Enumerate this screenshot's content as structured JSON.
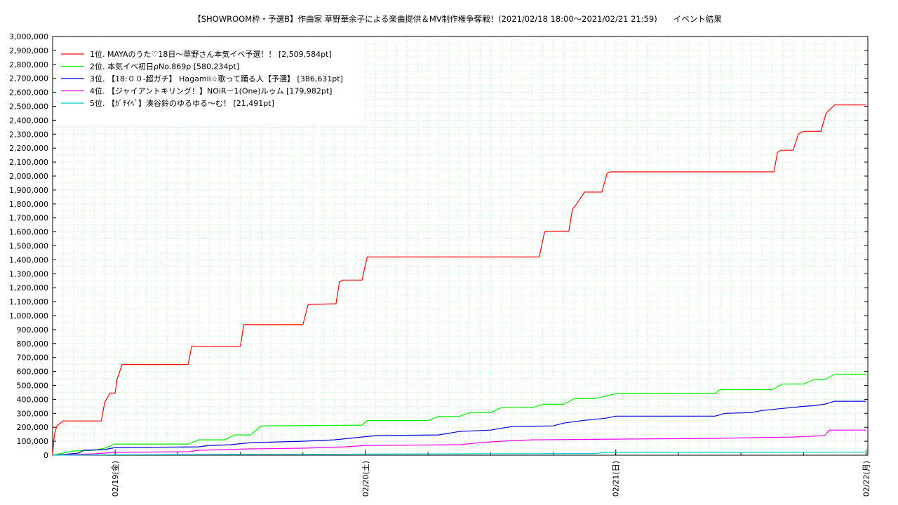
{
  "chart_data": {
    "type": "line",
    "title": "【SHOWROOM枠・予選B】作曲家 草野華余子による楽曲提供＆MV制作権争奪戦！(2021/02/18 18:00〜2021/02/21 21:59)　　イベント結果",
    "xlabel": "",
    "ylabel": "",
    "x_range": [
      "2021-02-18 18:00",
      "2021-02-22 00:10"
    ],
    "ylim": [
      0,
      3000000
    ],
    "y_ticks": [
      0,
      100000,
      200000,
      300000,
      400000,
      500000,
      600000,
      700000,
      800000,
      900000,
      1000000,
      1100000,
      1200000,
      1300000,
      1400000,
      1500000,
      1600000,
      1700000,
      1800000,
      1900000,
      2000000,
      2100000,
      2200000,
      2300000,
      2400000,
      2500000,
      2600000,
      2700000,
      2800000,
      2900000,
      3000000
    ],
    "y_tick_labels": [
      "0",
      "100,000",
      "200,000",
      "300,000",
      "400,000",
      "500,000",
      "600,000",
      "700,000",
      "800,000",
      "900,000",
      "1,000,000",
      "1,100,000",
      "1,200,000",
      "1,300,000",
      "1,400,000",
      "1,500,000",
      "1,600,000",
      "1,700,000",
      "1,800,000",
      "1,900,000",
      "2,000,000",
      "2,100,000",
      "2,200,000",
      "2,300,000",
      "2,400,000",
      "2,500,000",
      "2,600,000",
      "2,700,000",
      "2,800,000",
      "2,900,000",
      "3,000,000"
    ],
    "x_ticks": [
      {
        "date": "2021-02-19 00:00",
        "label": "02/19(金)"
      },
      {
        "date": "2021-02-20 00:00",
        "label": "02/20(土)"
      },
      {
        "date": "2021-02-21 00:00",
        "label": "02/21(日)"
      },
      {
        "date": "2021-02-22 00:00",
        "label": "02/22(月)"
      }
    ],
    "grid": true,
    "legend_position": "top-left",
    "series": [
      {
        "name": "1位. MAYAのうた︎♡18日〜草野さん本気イベ予選！！ [2,509,584pt]",
        "color": "#ff0000",
        "points": [
          [
            "2021-02-18 18:00",
            0
          ],
          [
            "2021-02-18 18:10",
            150000
          ],
          [
            "2021-02-18 18:25",
            210000
          ],
          [
            "2021-02-18 19:00",
            245000
          ],
          [
            "2021-02-18 22:40",
            245000
          ],
          [
            "2021-02-18 23:00",
            380000
          ],
          [
            "2021-02-18 23:30",
            445000
          ],
          [
            "2021-02-19 00:00",
            445000
          ],
          [
            "2021-02-19 00:10",
            540000
          ],
          [
            "2021-02-19 00:40",
            650000
          ],
          [
            "2021-02-19 07:00",
            650000
          ],
          [
            "2021-02-19 07:20",
            780000
          ],
          [
            "2021-02-19 12:00",
            780000
          ],
          [
            "2021-02-19 12:20",
            935000
          ],
          [
            "2021-02-19 18:00",
            935000
          ],
          [
            "2021-02-19 18:30",
            1080000
          ],
          [
            "2021-02-19 21:10",
            1085000
          ],
          [
            "2021-02-19 21:30",
            1240000
          ],
          [
            "2021-02-19 21:50",
            1255000
          ],
          [
            "2021-02-19 23:40",
            1255000
          ],
          [
            "2021-02-20 00:10",
            1420000
          ],
          [
            "2021-02-20 16:40",
            1420000
          ],
          [
            "2021-02-20 17:10",
            1600000
          ],
          [
            "2021-02-20 17:30",
            1605000
          ],
          [
            "2021-02-20 19:30",
            1605000
          ],
          [
            "2021-02-20 19:50",
            1760000
          ],
          [
            "2021-02-20 20:20",
            1810000
          ],
          [
            "2021-02-20 21:00",
            1885000
          ],
          [
            "2021-02-20 22:40",
            1885000
          ],
          [
            "2021-02-20 23:10",
            2020000
          ],
          [
            "2021-02-20 23:30",
            2030000
          ],
          [
            "2021-02-21 15:10",
            2030000
          ],
          [
            "2021-02-21 15:30",
            2170000
          ],
          [
            "2021-02-21 15:50",
            2185000
          ],
          [
            "2021-02-21 17:00",
            2185000
          ],
          [
            "2021-02-21 17:30",
            2300000
          ],
          [
            "2021-02-21 18:00",
            2320000
          ],
          [
            "2021-02-21 19:40",
            2320000
          ],
          [
            "2021-02-21 20:10",
            2450000
          ],
          [
            "2021-02-21 21:00",
            2509584
          ],
          [
            "2021-02-22 00:00",
            2509584
          ]
        ]
      },
      {
        "name": "2位. 本気イベ初日ρNo.869ρ [580,234pt]",
        "color": "#00ee00",
        "points": [
          [
            "2021-02-18 18:00",
            0
          ],
          [
            "2021-02-18 19:00",
            15000
          ],
          [
            "2021-02-18 20:00",
            30000
          ],
          [
            "2021-02-18 22:00",
            35000
          ],
          [
            "2021-02-18 23:00",
            50000
          ],
          [
            "2021-02-19 00:00",
            80000
          ],
          [
            "2021-02-19 07:00",
            80000
          ],
          [
            "2021-02-19 08:00",
            110000
          ],
          [
            "2021-02-19 10:30",
            110000
          ],
          [
            "2021-02-19 11:30",
            145000
          ],
          [
            "2021-02-19 13:00",
            145000
          ],
          [
            "2021-02-19 14:00",
            210000
          ],
          [
            "2021-02-19 23:40",
            215000
          ],
          [
            "2021-02-20 00:10",
            248000
          ],
          [
            "2021-02-20 06:00",
            248000
          ],
          [
            "2021-02-20 07:00",
            278000
          ],
          [
            "2021-02-20 09:00",
            278000
          ],
          [
            "2021-02-20 10:00",
            305000
          ],
          [
            "2021-02-20 12:00",
            305000
          ],
          [
            "2021-02-20 13:00",
            340000
          ],
          [
            "2021-02-20 16:00",
            340000
          ],
          [
            "2021-02-20 17:00",
            365000
          ],
          [
            "2021-02-20 19:00",
            365000
          ],
          [
            "2021-02-20 20:00",
            405000
          ],
          [
            "2021-02-20 22:00",
            405000
          ],
          [
            "2021-02-21 00:00",
            440000
          ],
          [
            "2021-02-21 09:30",
            440000
          ],
          [
            "2021-02-21 10:00",
            470000
          ],
          [
            "2021-02-21 15:00",
            470000
          ],
          [
            "2021-02-21 16:00",
            510000
          ],
          [
            "2021-02-21 18:00",
            510000
          ],
          [
            "2021-02-21 19:00",
            540000
          ],
          [
            "2021-02-21 20:00",
            540000
          ],
          [
            "2021-02-21 21:00",
            580234
          ],
          [
            "2021-02-22 00:00",
            580234
          ]
        ]
      },
      {
        "name": "3位. 【18:００-超ガチ】 Hagamii☆歌って踊る人【予選】 [386,631pt]",
        "color": "#0000dd",
        "points": [
          [
            "2021-02-18 18:00",
            0
          ],
          [
            "2021-02-18 19:00",
            5000
          ],
          [
            "2021-02-18 20:30",
            15000
          ],
          [
            "2021-02-18 21:00",
            35000
          ],
          [
            "2021-02-18 23:00",
            40000
          ],
          [
            "2021-02-19 00:00",
            55000
          ],
          [
            "2021-02-19 08:00",
            60000
          ],
          [
            "2021-02-19 09:00",
            70000
          ],
          [
            "2021-02-19 11:00",
            75000
          ],
          [
            "2021-02-19 13:00",
            90000
          ],
          [
            "2021-02-19 18:00",
            100000
          ],
          [
            "2021-02-19 21:00",
            110000
          ],
          [
            "2021-02-19 23:00",
            125000
          ],
          [
            "2021-02-20 01:00",
            140000
          ],
          [
            "2021-02-20 07:00",
            145000
          ],
          [
            "2021-02-20 09:00",
            170000
          ],
          [
            "2021-02-20 12:00",
            180000
          ],
          [
            "2021-02-20 14:00",
            205000
          ],
          [
            "2021-02-20 18:00",
            210000
          ],
          [
            "2021-02-20 19:00",
            230000
          ],
          [
            "2021-02-20 21:00",
            250000
          ],
          [
            "2021-02-20 23:00",
            265000
          ],
          [
            "2021-02-21 00:00",
            280000
          ],
          [
            "2021-02-21 09:30",
            280000
          ],
          [
            "2021-02-21 10:30",
            300000
          ],
          [
            "2021-02-21 13:00",
            305000
          ],
          [
            "2021-02-21 14:00",
            320000
          ],
          [
            "2021-02-21 16:00",
            335000
          ],
          [
            "2021-02-21 18:00",
            350000
          ],
          [
            "2021-02-21 19:00",
            355000
          ],
          [
            "2021-02-21 20:00",
            365000
          ],
          [
            "2021-02-21 21:00",
            386631
          ],
          [
            "2021-02-22 00:00",
            386631
          ]
        ]
      },
      {
        "name": "4位. 【ジャイアントキリング！】NOiR－1(One)ルゥム [179,982pt]",
        "color": "#ee00ee",
        "points": [
          [
            "2021-02-18 18:00",
            0
          ],
          [
            "2021-02-18 22:00",
            10000
          ],
          [
            "2021-02-19 00:00",
            20000
          ],
          [
            "2021-02-19 07:00",
            25000
          ],
          [
            "2021-02-19 08:00",
            35000
          ],
          [
            "2021-02-19 13:00",
            45000
          ],
          [
            "2021-02-19 18:00",
            50000
          ],
          [
            "2021-02-19 22:00",
            60000
          ],
          [
            "2021-02-20 00:00",
            70000
          ],
          [
            "2021-02-20 09:00",
            75000
          ],
          [
            "2021-02-20 11:00",
            90000
          ],
          [
            "2021-02-20 13:00",
            100000
          ],
          [
            "2021-02-20 16:00",
            110000
          ],
          [
            "2021-02-21 00:00",
            115000
          ],
          [
            "2021-02-21 09:00",
            120000
          ],
          [
            "2021-02-21 13:00",
            125000
          ],
          [
            "2021-02-21 17:00",
            130000
          ],
          [
            "2021-02-21 20:00",
            140000
          ],
          [
            "2021-02-21 20:30",
            180000
          ],
          [
            "2021-02-22 00:00",
            179982
          ]
        ]
      },
      {
        "name": "5位. 【ｶﾞﾁｲﾍﾞ】湊谷鈴のゆるゆる〜む！ [21,491pt]",
        "color": "#00cccc",
        "points": [
          [
            "2021-02-18 18:00",
            0
          ],
          [
            "2021-02-19 00:00",
            3000
          ],
          [
            "2021-02-20 00:00",
            8000
          ],
          [
            "2021-02-20 22:00",
            12000
          ],
          [
            "2021-02-20 23:00",
            20000
          ],
          [
            "2021-02-21 21:00",
            21491
          ],
          [
            "2021-02-22 00:00",
            21491
          ]
        ]
      }
    ]
  }
}
